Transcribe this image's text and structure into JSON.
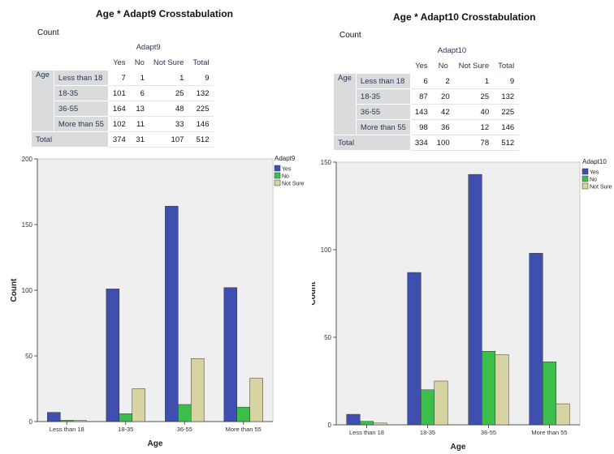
{
  "colors": {
    "yes": "#3f4fb0",
    "no": "#3cbf4a",
    "not_sure": "#d8d3a2",
    "plot_bg": "#efefef"
  },
  "panels": [
    {
      "title": "Age * Adapt9 Crosstabulation",
      "count_label": "Count",
      "column_variable": "Adapt9",
      "row_variable": "Age",
      "total_label": "Total",
      "columns": [
        "Yes",
        "No",
        "Not Sure",
        "Total"
      ],
      "rows": [
        {
          "label": "Less than 18",
          "values": [
            "7",
            "1",
            "1",
            "9"
          ]
        },
        {
          "label": "18-35",
          "values": [
            "101",
            "6",
            "25",
            "132"
          ]
        },
        {
          "label": "36-55",
          "values": [
            "164",
            "13",
            "48",
            "225"
          ]
        },
        {
          "label": "More than 55",
          "values": [
            "102",
            "11",
            "33",
            "146"
          ]
        }
      ],
      "total_row": [
        "374",
        "31",
        "107",
        "512"
      ]
    },
    {
      "title": "Age * Adapt10 Crosstabulation",
      "count_label": "Count",
      "column_variable": "Adapt10",
      "row_variable": "Age",
      "total_label": "Total",
      "columns": [
        "Yes",
        "No",
        "Not Sure",
        "Total"
      ],
      "rows": [
        {
          "label": "Less than 18",
          "values": [
            "6",
            "2",
            "1",
            "9"
          ]
        },
        {
          "label": "18-35",
          "values": [
            "87",
            "20",
            "25",
            "132"
          ]
        },
        {
          "label": "36-55",
          "values": [
            "143",
            "42",
            "40",
            "225"
          ]
        },
        {
          "label": "More than 55",
          "values": [
            "98",
            "36",
            "12",
            "146"
          ]
        }
      ],
      "total_row": [
        "334",
        "100",
        "78",
        "512"
      ]
    }
  ],
  "chart_data": [
    {
      "type": "bar",
      "categories": [
        "Less than 18",
        "18-35",
        "36-55",
        "More than 55"
      ],
      "series": [
        {
          "name": "Yes",
          "values": [
            7,
            101,
            164,
            102
          ]
        },
        {
          "name": "No",
          "values": [
            1,
            6,
            13,
            11
          ]
        },
        {
          "name": "Not Sure",
          "values": [
            1,
            25,
            48,
            33
          ]
        }
      ],
      "legend_title": "Adapt9",
      "legend_position": "top-right",
      "xlabel": "Age",
      "ylabel": "Count",
      "ylim": [
        0,
        200
      ],
      "yticks": [
        0,
        50,
        100,
        150,
        200
      ],
      "grid": false
    },
    {
      "type": "bar",
      "categories": [
        "Less than 18",
        "18-35",
        "36-55",
        "More than 55"
      ],
      "series": [
        {
          "name": "Yes",
          "values": [
            6,
            87,
            143,
            98
          ]
        },
        {
          "name": "No",
          "values": [
            2,
            20,
            42,
            36
          ]
        },
        {
          "name": "Not Sure",
          "values": [
            1,
            25,
            40,
            12
          ]
        }
      ],
      "legend_title": "Adapt10",
      "legend_position": "top-right",
      "xlabel": "Age",
      "ylabel": "Count",
      "ylim": [
        0,
        150
      ],
      "yticks": [
        0,
        50,
        100,
        150
      ],
      "grid": false
    }
  ]
}
